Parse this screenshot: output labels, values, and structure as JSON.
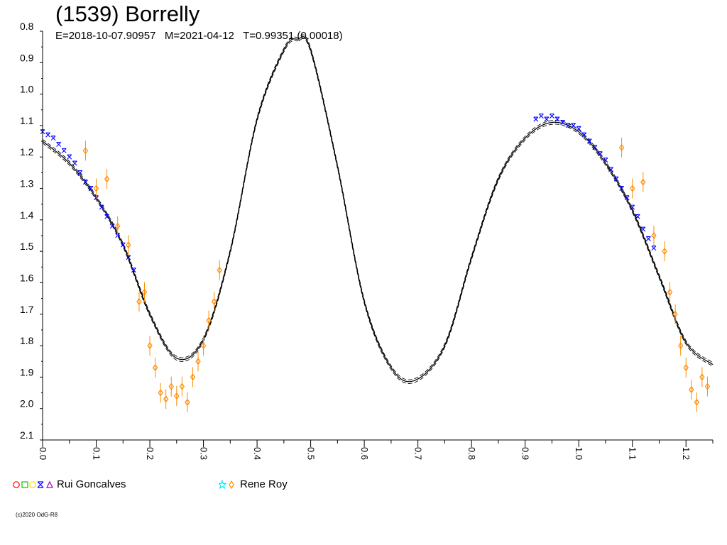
{
  "chart_data": {
    "type": "scatter",
    "title": "(1539) Borrelly",
    "subtitle": "E=2018-10-07.90957   M=2021-04-12   T=0.99351 (0.00018)",
    "xlabel": "",
    "ylabel": "",
    "xlim": [
      0.0,
      1.25
    ],
    "ylim": [
      0.8,
      2.1
    ],
    "y_inverted": true,
    "x_tick_labels": [
      "0.0",
      "0.1",
      "0.2",
      "0.3",
      "0.4",
      "0.5",
      "0.6",
      "0.7",
      "0.8",
      "0.9",
      "1.0",
      "1.1",
      "1.2"
    ],
    "y_tick_labels": [
      "0.8",
      "0.9",
      "1.0",
      "1.1",
      "1.2",
      "1.3",
      "1.4",
      "1.5",
      "1.6",
      "1.7",
      "1.8",
      "1.9",
      "2.0",
      "2.1"
    ],
    "grid": false,
    "legend_position": "bottom",
    "fit_curve": {
      "x": [
        0.0,
        0.05,
        0.1,
        0.15,
        0.2,
        0.25,
        0.3,
        0.35,
        0.4,
        0.45,
        0.475,
        0.5,
        0.55,
        0.6,
        0.65,
        0.695,
        0.75,
        0.8,
        0.85,
        0.9,
        0.95,
        1.0,
        1.05,
        1.1,
        1.15,
        1.2,
        1.25
      ],
      "y": [
        1.15,
        1.22,
        1.33,
        1.48,
        1.7,
        1.84,
        1.78,
        1.5,
        1.08,
        0.86,
        0.825,
        0.86,
        1.23,
        1.66,
        1.87,
        1.91,
        1.8,
        1.52,
        1.27,
        1.14,
        1.09,
        1.12,
        1.22,
        1.37,
        1.58,
        1.79,
        1.86
      ]
    },
    "series": [
      {
        "name": "Rui Goncalves",
        "color": "#0000ff",
        "x": [
          0.0,
          0.01,
          0.02,
          0.03,
          0.04,
          0.05,
          0.06,
          0.07,
          0.08,
          0.09,
          0.1,
          0.11,
          0.12,
          0.13,
          0.14,
          0.15,
          0.16,
          0.17,
          0.92,
          0.93,
          0.94,
          0.95,
          0.96,
          0.97,
          0.98,
          0.99,
          1.0,
          1.01,
          1.02,
          1.03,
          1.04,
          1.05,
          1.06,
          1.07,
          1.08,
          1.09,
          1.1,
          1.11,
          1.12,
          1.13,
          1.14
        ],
        "y": [
          1.12,
          1.13,
          1.14,
          1.16,
          1.18,
          1.2,
          1.22,
          1.25,
          1.28,
          1.3,
          1.33,
          1.36,
          1.39,
          1.42,
          1.45,
          1.48,
          1.52,
          1.56,
          1.08,
          1.07,
          1.08,
          1.07,
          1.08,
          1.09,
          1.1,
          1.1,
          1.11,
          1.13,
          1.15,
          1.17,
          1.19,
          1.21,
          1.24,
          1.27,
          1.3,
          1.33,
          1.36,
          1.39,
          1.43,
          1.46,
          1.49
        ]
      },
      {
        "name": "Rene Roy",
        "color": "#ff8c00",
        "x": [
          0.08,
          0.1,
          0.12,
          0.14,
          0.16,
          0.18,
          0.19,
          0.2,
          0.21,
          0.22,
          0.23,
          0.24,
          0.25,
          0.26,
          0.27,
          0.28,
          0.29,
          0.3,
          0.31,
          0.32,
          0.33,
          1.08,
          1.1,
          1.12,
          1.14,
          1.16,
          1.17,
          1.18,
          1.19,
          1.2,
          1.21,
          1.22,
          1.23,
          1.24
        ],
        "y": [
          1.18,
          1.3,
          1.27,
          1.42,
          1.48,
          1.66,
          1.63,
          1.8,
          1.87,
          1.95,
          1.97,
          1.93,
          1.96,
          1.93,
          1.98,
          1.9,
          1.85,
          1.8,
          1.72,
          1.66,
          1.56,
          1.17,
          1.3,
          1.28,
          1.45,
          1.5,
          1.63,
          1.7,
          1.8,
          1.87,
          1.94,
          1.98,
          1.9,
          1.93
        ]
      }
    ]
  },
  "legend": [
    {
      "label": "Rui Goncalves"
    },
    {
      "label": "Rene Roy"
    }
  ],
  "copyright": "(c)2020 OdG-R8"
}
